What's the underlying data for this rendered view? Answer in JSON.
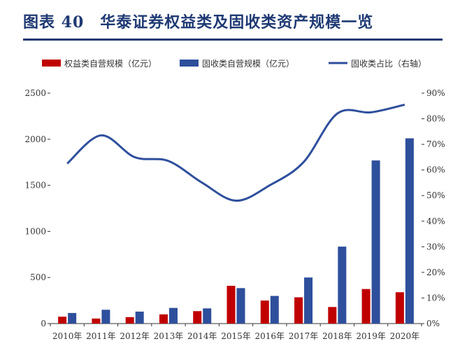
{
  "figure": {
    "title": "图表 40　华泰证券权益类及固收类资产规模一览"
  },
  "colors": {
    "title": "#1f3a73",
    "equity": "#c00000",
    "fixed_income": "#2e4f9c",
    "ratio_line": "#2e4f9c",
    "axis": "#333333"
  },
  "chart_data": {
    "type": "bar",
    "categories": [
      "2010年",
      "2011年",
      "2012年",
      "2013年",
      "2014年",
      "2015年",
      "2016年",
      "2017年",
      "2018年",
      "2019年",
      "2020年"
    ],
    "series": [
      {
        "name": "权益类自营规模（亿元）",
        "kind": "bar",
        "axis": "left",
        "values": [
          75,
          55,
          70,
          100,
          135,
          410,
          250,
          285,
          180,
          375,
          340
        ]
      },
      {
        "name": "固收类自营规模（亿元）",
        "kind": "bar",
        "axis": "left",
        "values": [
          115,
          150,
          130,
          170,
          165,
          385,
          300,
          500,
          835,
          1770,
          2010
        ]
      },
      {
        "name": "固收类占比（右轴）",
        "kind": "line",
        "axis": "right",
        "values": [
          62.5,
          73.5,
          65,
          63.5,
          55,
          48,
          54,
          63,
          82,
          82.5,
          85.5
        ]
      }
    ],
    "y_left": {
      "min": 0,
      "max": 2500,
      "ticks": [
        0,
        500,
        1000,
        1500,
        2000,
        2500
      ]
    },
    "y_right": {
      "min": 0,
      "max": 90,
      "ticks": [
        "0%",
        "10%",
        "20%",
        "30%",
        "40%",
        "50%",
        "60%",
        "70%",
        "80%",
        "90%"
      ]
    },
    "grid": false,
    "legend_position": "top"
  }
}
